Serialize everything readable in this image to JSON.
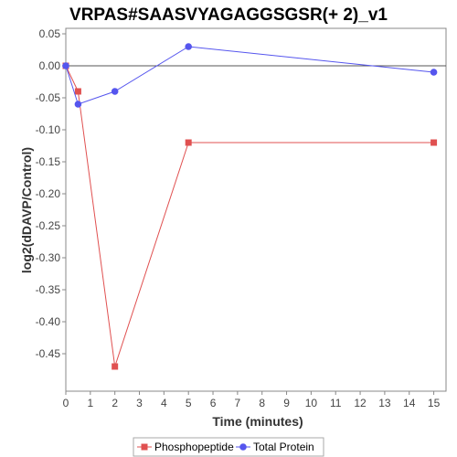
{
  "chart_data": {
    "type": "line",
    "title": "VRPAS#SAASVYAGAGGSGSR(+ 2)_v1",
    "xlabel": "Time (minutes)",
    "ylabel": "log2(dDAVP/Control)",
    "xlim": [
      0,
      15.5
    ],
    "ylim": [
      -0.5,
      0.05
    ],
    "xticks": [
      "0",
      "1",
      "2",
      "3",
      "4",
      "5",
      "6",
      "7",
      "8",
      "9",
      "10",
      "11",
      "12",
      "13",
      "14",
      "15"
    ],
    "yticks": [
      "0.05",
      "0.00",
      "-0.05",
      "-0.10",
      "-0.15",
      "-0.20",
      "-0.25",
      "-0.30",
      "-0.35",
      "-0.40",
      "-0.45"
    ],
    "grid": false,
    "legend_position": "bottom",
    "series": [
      {
        "name": "Phosphopeptide",
        "color": "#e05050",
        "marker": "square",
        "x": [
          0,
          0.5,
          2,
          5,
          15
        ],
        "y": [
          0.0,
          -0.04,
          -0.47,
          -0.12,
          -0.12
        ]
      },
      {
        "name": "Total Protein",
        "color": "#5555ee",
        "marker": "circle",
        "x": [
          0,
          0.5,
          2,
          5,
          15
        ],
        "y": [
          0.0,
          -0.06,
          -0.04,
          0.03,
          -0.01
        ]
      }
    ]
  }
}
